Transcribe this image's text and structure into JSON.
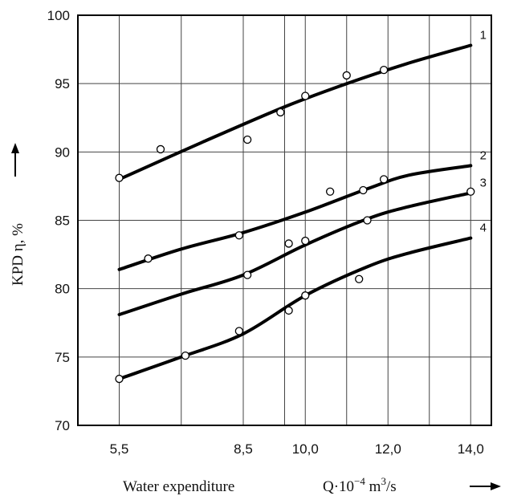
{
  "chart_data": {
    "type": "line",
    "title": "",
    "xlabel": "Water expenditure",
    "xunit_prefix": "Q·10",
    "xunit_exp": "−4",
    "xunit_suffix": " m",
    "xunit_pow": "3",
    "xunit_tail": "/s",
    "ylabel": "KPD η, %",
    "xlim": [
      4.5,
      14.5
    ],
    "ylim": [
      70,
      100
    ],
    "x_tick_labels": [
      {
        "value": 5.5,
        "label": "5,5"
      },
      {
        "value": 8.5,
        "label": "8,5"
      },
      {
        "value": 10.0,
        "label": "10,0"
      },
      {
        "value": 12.0,
        "label": "12,0"
      },
      {
        "value": 14.0,
        "label": "14,0"
      }
    ],
    "x_gridlines": [
      5.5,
      7.0,
      8.5,
      9.5,
      10.0,
      11.0,
      12.0,
      13.0,
      14.0
    ],
    "y_ticks": [
      70,
      75,
      80,
      85,
      90,
      95,
      100
    ],
    "grid": true,
    "arrows": true,
    "series": [
      {
        "name": "1",
        "curve": [
          [
            5.5,
            88.0
          ],
          [
            7.5,
            90.7
          ],
          [
            9.5,
            93.3
          ],
          [
            11.0,
            95.0
          ],
          [
            12.5,
            96.5
          ],
          [
            14.0,
            97.8
          ]
        ],
        "points": [
          [
            5.5,
            88.1
          ],
          [
            6.5,
            90.2
          ],
          [
            8.6,
            90.9
          ],
          [
            9.4,
            92.9
          ],
          [
            10.0,
            94.1
          ],
          [
            11.0,
            95.6
          ],
          [
            11.9,
            96.0
          ]
        ]
      },
      {
        "name": "2",
        "curve": [
          [
            5.5,
            81.4
          ],
          [
            7.0,
            82.9
          ],
          [
            8.5,
            84.1
          ],
          [
            10.0,
            85.6
          ],
          [
            11.5,
            87.3
          ],
          [
            12.5,
            88.3
          ],
          [
            14.0,
            89.0
          ]
        ],
        "points": [
          [
            6.2,
            82.2
          ],
          [
            8.4,
            83.9
          ],
          [
            10.6,
            87.1
          ],
          [
            11.4,
            87.2
          ],
          [
            11.9,
            88.0
          ]
        ]
      },
      {
        "name": "3",
        "curve": [
          [
            5.5,
            78.1
          ],
          [
            7.0,
            79.6
          ],
          [
            8.5,
            81.0
          ],
          [
            10.0,
            83.2
          ],
          [
            11.5,
            85.1
          ],
          [
            12.5,
            86.0
          ],
          [
            14.0,
            87.0
          ]
        ],
        "points": [
          [
            8.6,
            81.0
          ],
          [
            9.6,
            83.3
          ],
          [
            10.0,
            83.5
          ],
          [
            11.5,
            85.0
          ],
          [
            14.0,
            87.1
          ]
        ]
      },
      {
        "name": "4",
        "curve": [
          [
            5.5,
            73.4
          ],
          [
            7.0,
            75.0
          ],
          [
            8.5,
            76.7
          ],
          [
            10.0,
            79.5
          ],
          [
            11.5,
            81.6
          ],
          [
            12.5,
            82.6
          ],
          [
            14.0,
            83.7
          ]
        ],
        "points": [
          [
            5.5,
            73.4
          ],
          [
            7.1,
            75.1
          ],
          [
            8.4,
            76.9
          ],
          [
            9.6,
            78.4
          ],
          [
            10.0,
            79.5
          ],
          [
            11.3,
            80.7
          ]
        ]
      }
    ]
  }
}
